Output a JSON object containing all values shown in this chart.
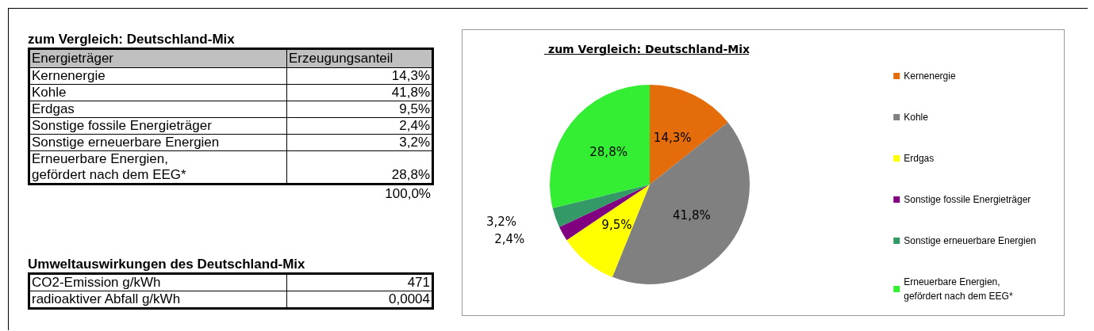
{
  "chart_data": [
    {
      "type": "other",
      "title": "zum Vergleich: Deutschland-Mix",
      "xlabel": "Energieträger",
      "ylabel": "Erzeugungsanteil",
      "categories": [
        "Kernenergie",
        "Kohle",
        "Erdgas",
        "Sonstige fossile Energieträger",
        "Sonstige erneuerbare Energien",
        "Erneuerbare Energien,\ngefördert nach dem EEG*"
      ],
      "value_labels": [
        "14,3%",
        "41,8%",
        "9,5%",
        "2,4%",
        "3,2%",
        "28,8%"
      ],
      "annotations": [
        "100,0%"
      ]
    },
    {
      "type": "pie",
      "title": "zum Vergleich: Deutschland-Mix",
      "categories": [
        "Kernenergie",
        "Kohle",
        "Erdgas",
        "Sonstige fossile Energieträger",
        "Sonstige erneuerbare Energien",
        "Erneuerbare Energien,\ngefördert nach dem EEG*"
      ],
      "values": [
        14.3,
        41.8,
        9.5,
        2.4,
        3.2,
        28.8
      ],
      "colors": [
        "#e46c0a",
        "#808080",
        "#ffff00",
        "#800080",
        "#339966",
        "#33ee33"
      ],
      "value_labels": [
        "14,3%",
        "41,8%",
        "9,5%",
        "2,4%",
        "3,2%",
        "28,8%"
      ],
      "legend": "right"
    },
    {
      "type": "other",
      "title": "Umweltauswirkungen des Deutschland-Mix",
      "categories": [
        "CO2-Emission g/kWh",
        "radioaktiver Abfall g/kWh"
      ],
      "value_labels": [
        "471",
        "0,0004"
      ]
    }
  ]
}
